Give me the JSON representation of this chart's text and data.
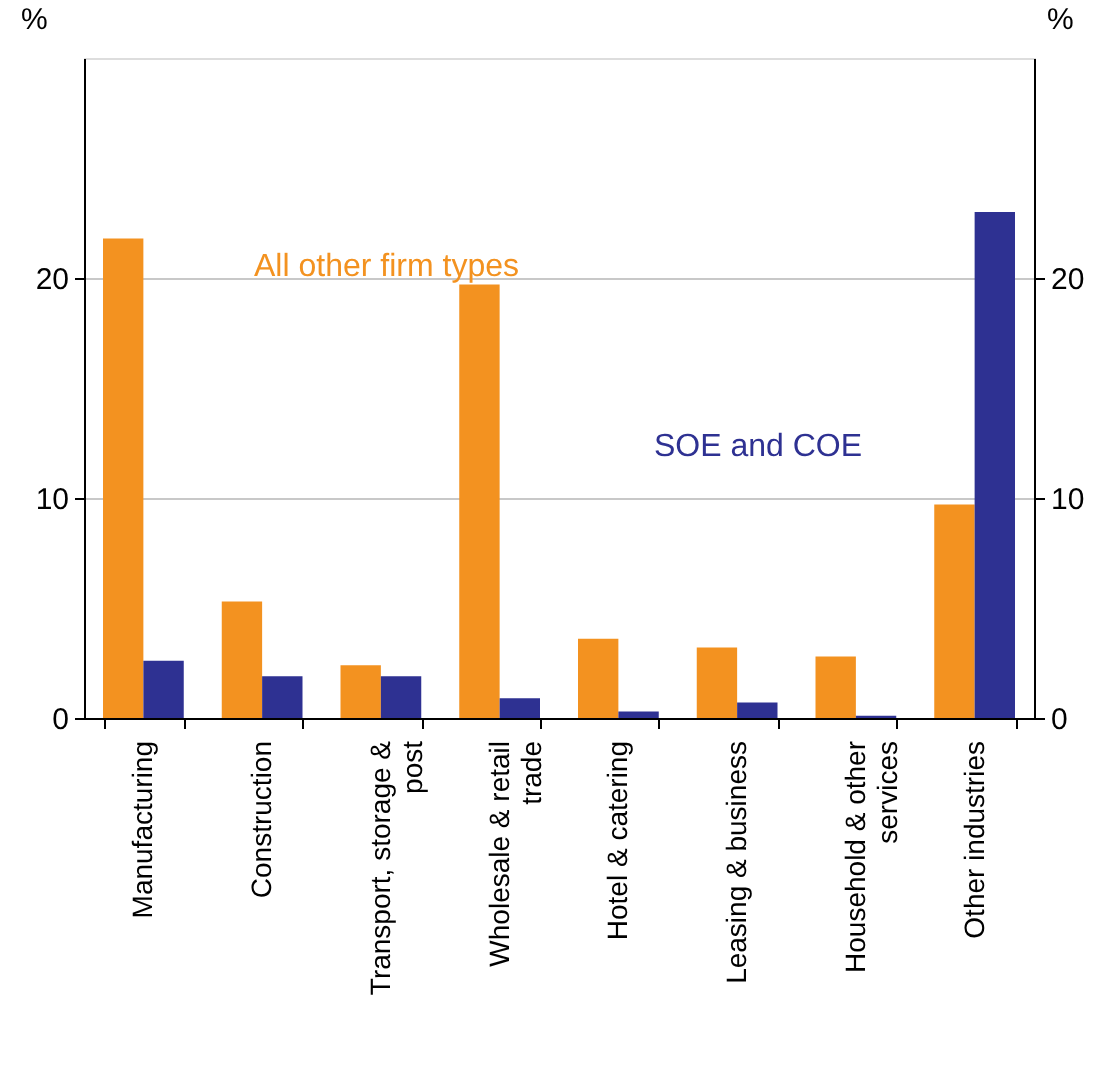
{
  "chart_data": {
    "type": "bar",
    "categories": [
      "Manufacturing",
      "Construction",
      "Transport, storage & post",
      "Wholesale & retail trade",
      "Hotel & catering",
      "Leasing & business",
      "Household & other services",
      "Other industries"
    ],
    "series": [
      {
        "name": "All other firm types",
        "color": "#f39220",
        "values": [
          21.8,
          5.3,
          2.4,
          19.7,
          3.6,
          3.2,
          2.8,
          9.7
        ]
      },
      {
        "name": "SOE and COE",
        "color": "#2e3192",
        "values": [
          2.6,
          1.9,
          1.9,
          0.9,
          0.3,
          0.7,
          0.1,
          23.0
        ]
      }
    ],
    "ylabel": "%",
    "y2label": "%",
    "ylim": [
      0,
      30
    ],
    "yticks": [
      0,
      10,
      20
    ],
    "y2lim": [
      0,
      30
    ],
    "y2ticks": [
      0,
      10,
      20
    ],
    "grid": "y",
    "legend": false
  }
}
